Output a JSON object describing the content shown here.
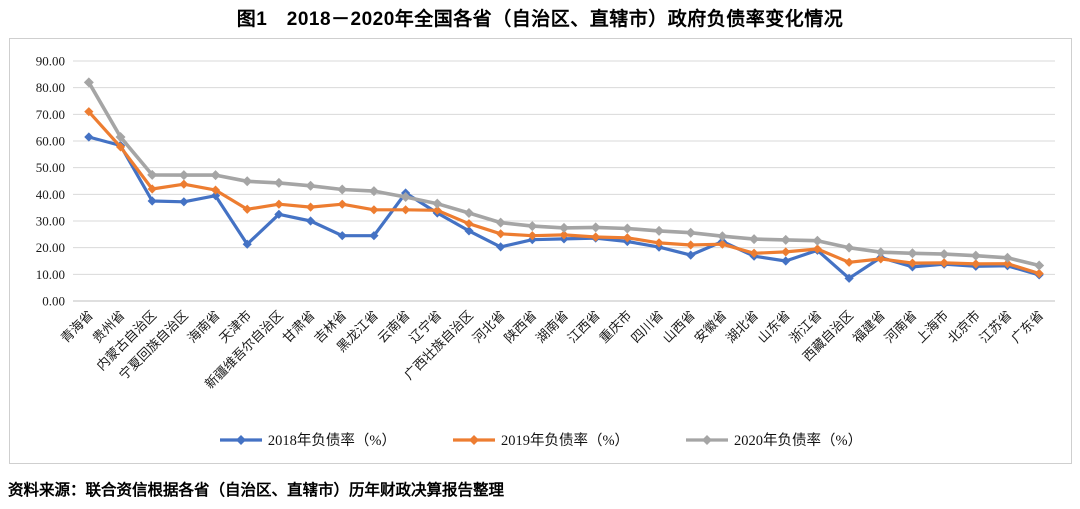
{
  "figure": {
    "title": "图1　2018－2020年全国各省（自治区、直辖市）政府负债率变化情况",
    "source_note": "资料来源：联合资信根据各省（自治区、直辖市）历年财政决算报告整理"
  },
  "chart_data": {
    "type": "line",
    "title": "图1　2018－2020年全国各省（自治区、直辖市）政府负债率变化情况",
    "categories": [
      "青海省",
      "贵州省",
      "内蒙古自治区",
      "宁夏回族自治区",
      "海南省",
      "天津市",
      "新疆维吾尔自治区",
      "甘肃省",
      "吉林省",
      "黑龙江省",
      "云南省",
      "辽宁省",
      "广西壮族自治区",
      "河北省",
      "陕西省",
      "湖南省",
      "江西省",
      "重庆市",
      "四川省",
      "山西省",
      "安徽省",
      "湖北省",
      "山东省",
      "浙江省",
      "西藏自治区",
      "福建省",
      "河南省",
      "上海市",
      "北京市",
      "江苏省",
      "广东省"
    ],
    "series": [
      {
        "name": "2018年负债率（%）",
        "color": "#4472C4",
        "marker": "diamond",
        "values": [
          61.5,
          58.3,
          37.5,
          37.2,
          39.5,
          21.3,
          32.5,
          30.0,
          24.5,
          24.5,
          40.5,
          33.0,
          26.3,
          20.3,
          23.0,
          23.3,
          23.6,
          22.3,
          20.2,
          17.2,
          22.3,
          16.8,
          15.0,
          19.0,
          8.5,
          16.3,
          12.8,
          13.8,
          13.0,
          13.2,
          9.8
        ]
      },
      {
        "name": "2019年负债率（%）",
        "color": "#ED7D31",
        "marker": "diamond",
        "values": [
          71.0,
          57.8,
          42.0,
          43.8,
          41.6,
          34.4,
          36.3,
          35.2,
          36.3,
          34.2,
          34.2,
          34.0,
          29.0,
          25.2,
          24.5,
          24.8,
          24.0,
          23.7,
          21.8,
          21.0,
          21.3,
          17.9,
          18.4,
          19.5,
          14.5,
          15.8,
          14.2,
          14.3,
          13.9,
          14.0,
          10.3
        ]
      },
      {
        "name": "2020年负债率（%）",
        "color": "#A5A5A5",
        "marker": "diamond",
        "values": [
          82.0,
          61.5,
          47.3,
          47.2,
          47.2,
          44.9,
          44.3,
          43.2,
          41.8,
          41.2,
          39.0,
          36.5,
          33.0,
          29.4,
          28.1,
          27.4,
          27.6,
          27.2,
          26.3,
          25.6,
          24.3,
          23.2,
          22.9,
          22.6,
          20.0,
          18.3,
          17.9,
          17.6,
          17.0,
          16.2,
          13.3
        ]
      }
    ],
    "xlabel": "",
    "ylabel": "",
    "ylim": [
      0,
      90
    ],
    "ytick_step": 10,
    "ytick_format": "two-decimals",
    "grid": "horizontal",
    "gridline_color": "#d9d9d9",
    "axis_line_color": "#bfbfbf",
    "legend_position": "bottom",
    "x_label_rotation": -45
  }
}
